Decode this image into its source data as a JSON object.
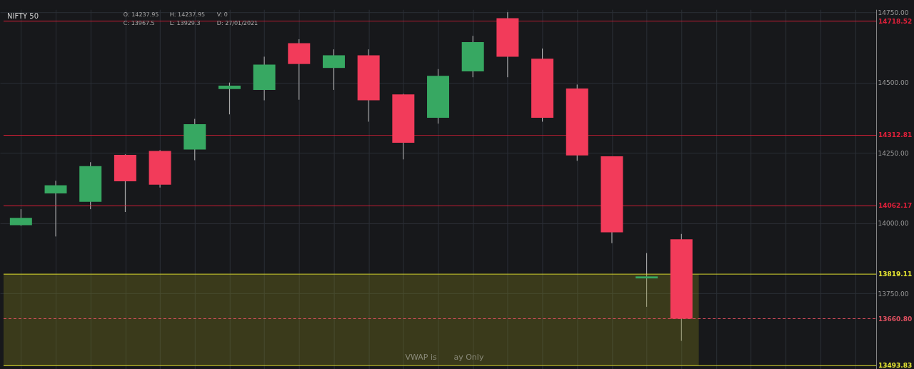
{
  "chart_data": {
    "type": "candlestick",
    "title": "NIFTY 50",
    "categories": [
      null,
      null,
      null,
      null,
      null,
      null,
      null,
      null,
      null,
      null,
      null,
      null,
      null,
      null,
      null,
      null,
      null,
      null,
      null,
      null,
      null,
      null,
      null,
      null,
      null
    ],
    "ohlc": [
      [
        13993,
        14050,
        13991,
        14019
      ],
      [
        14106,
        14151,
        13953,
        14135
      ],
      [
        14076,
        14217,
        14050,
        14203
      ],
      [
        14243,
        14245,
        14040,
        14149
      ],
      [
        14257,
        14260,
        14127,
        14137
      ],
      [
        14262,
        14371,
        14224,
        14352
      ],
      [
        14477,
        14500,
        14387,
        14489
      ],
      [
        14474,
        14592,
        14437,
        14564
      ],
      [
        14640,
        14654,
        14439,
        14566
      ],
      [
        14552,
        14618,
        14474,
        14597
      ],
      [
        14597,
        14618,
        14361,
        14437
      ],
      [
        14458,
        14460,
        14227,
        14286
      ],
      [
        14375,
        14548,
        14354,
        14524
      ],
      [
        14540,
        14666,
        14519,
        14644
      ],
      [
        14729,
        14750,
        14519,
        14592
      ],
      [
        14585,
        14621,
        14361,
        14375
      ],
      [
        14479,
        14493,
        14222,
        14241
      ],
      [
        14237.95,
        14237.95,
        13929.3,
        13967.5
      ],
      [
        13804,
        13894,
        13703,
        13811
      ],
      [
        13943,
        13962,
        13582,
        13660.8
      ],
      null,
      null,
      null,
      null,
      null
    ],
    "colors": [
      "#37a862",
      "#37a862",
      "#37a862",
      "#f23b5a",
      "#f23b5a",
      "#37a862",
      "#37a862",
      "#37a862",
      "#f23b5a",
      "#37a862",
      "#f23b5a",
      "#f23b5a",
      "#37a862",
      "#37a862",
      "#f23b5a",
      "#f23b5a",
      "#f23b5a",
      "#f23b5a",
      "#37a862",
      "#f23b5a",
      null,
      null,
      null,
      null,
      null
    ],
    "ylim": [
      13480,
      14760
    ],
    "yticks": [
      {
        "value": 13750,
        "label": "13750.00"
      },
      {
        "value": 14000,
        "label": "14000.00"
      },
      {
        "value": 14250,
        "label": "14250.00"
      },
      {
        "value": 14500,
        "label": "14500.00"
      },
      {
        "value": 14750,
        "label": "14750.00"
      }
    ],
    "ref_lines": [
      {
        "axis": "y",
        "value": 14718.52,
        "label": "14718.52",
        "color": "#e0203a"
      },
      {
        "axis": "y",
        "value": 14312.81,
        "label": "14312.81",
        "color": "#e0203a"
      },
      {
        "axis": "y",
        "value": 14062.17,
        "label": "14062.17",
        "color": "#e0203a"
      },
      {
        "axis": "y",
        "value": 13819.11,
        "label": "13819.11",
        "color": "#e6e632"
      },
      {
        "axis": "y",
        "value": 13660.8,
        "label": "13660.80",
        "color": "#e05060",
        "line_style": "dashed"
      },
      {
        "axis": "y",
        "value": 13493.83,
        "label": "13493.83",
        "color": "#e6e632"
      }
    ],
    "bands": [
      {
        "axis": "y",
        "from": 13493.83,
        "to": 13819.11,
        "color": "#8a8a1e"
      }
    ],
    "annotations": [
      "O: 14237.95",
      "H: 14237.95",
      "V: 0",
      "C: 13967.5",
      "L: 13929.3",
      "D: 27/01/2021",
      "VWAP is",
      "ay Only"
    ],
    "grid": true,
    "tick_labels": "y"
  }
}
